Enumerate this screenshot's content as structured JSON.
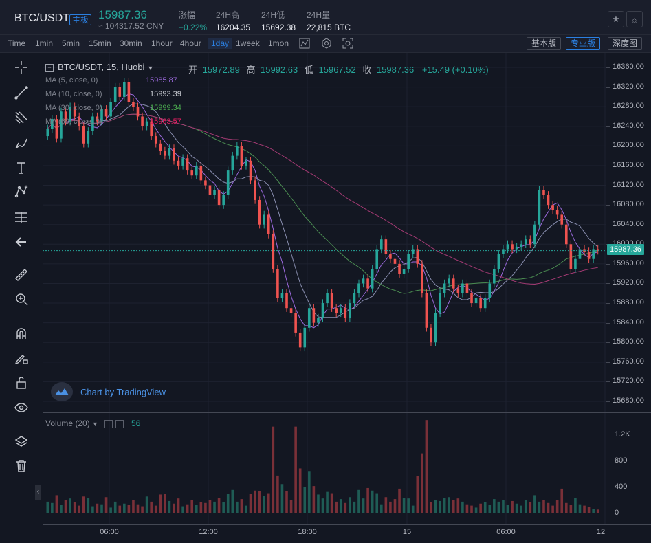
{
  "header": {
    "pair": "BTC/USDT",
    "badge": "主板",
    "price": "15987.36",
    "cny": "≈ 104317.52 CNY",
    "stats": [
      {
        "label": "涨幅",
        "value": "+0.22%"
      },
      {
        "label": "24H高",
        "value": "16204.35"
      },
      {
        "label": "24H低",
        "value": "15692.38"
      },
      {
        "label": "24H量",
        "value": "22,815 BTC"
      }
    ],
    "star_icon": "star-icon",
    "theme_icon": "sun-icon"
  },
  "toolbar": {
    "timeframes": [
      "Time",
      "1min",
      "5min",
      "15min",
      "30min",
      "1hour",
      "4hour",
      "1day",
      "1week",
      "1mon"
    ],
    "active": "1day",
    "icons": [
      "indicator-icon",
      "settings-icon",
      "screenshot-icon"
    ],
    "views": [
      "基本版",
      "专业版",
      "深度图"
    ],
    "active_view": "专业版"
  },
  "legend": {
    "title": "BTC/USDT, 15, Huobi",
    "ohlc": {
      "o_label": "开=",
      "o": "15972.89",
      "h_label": "高=",
      "h": "15992.63",
      "l_label": "低=",
      "l": "15967.52",
      "c_label": "收=",
      "c": "15987.36",
      "change": "+15.49 (+0.10%)"
    },
    "ma": [
      {
        "label": "MA (5, close, 0)",
        "value": "15985.87",
        "color": "#9c6ade"
      },
      {
        "label": "MA (10, close, 0)",
        "value": "15993.39",
        "color": "#c7cad1"
      },
      {
        "label": "MA (30, close, 0)",
        "value": "15999.34",
        "color": "#4caf50"
      },
      {
        "label": "MA (60, close, 0)",
        "value": "15963.57",
        "color": "#e91e63"
      }
    ]
  },
  "watermark": "Chart by TradingView",
  "volume": {
    "label": "Volume (20)",
    "value": "56"
  },
  "last_price_tag": "15987.36",
  "colors": {
    "up": "#26a69a",
    "down": "#ef5350",
    "bg": "#131722"
  },
  "chart_data": {
    "type": "candlestick",
    "y_ticks": [
      16360,
      16320,
      16280,
      16240,
      16200,
      16160,
      16120,
      16080,
      16040,
      16000,
      15960,
      15920,
      15880,
      15840,
      15800,
      15760,
      15720,
      15680
    ],
    "y_tick_labels": [
      "16360.00",
      "16320.00",
      "16280.00",
      "16240.00",
      "16200.00",
      "16160.00",
      "16120.00",
      "16080.00",
      "16040.00",
      "16000.00",
      "15960.00",
      "15920.00",
      "15880.00",
      "15840.00",
      "15800.00",
      "15760.00",
      "15720.00",
      "15680.00"
    ],
    "vol_ticks": [
      "1.2K",
      "800",
      "400",
      "0"
    ],
    "x_labels": [
      "06:00",
      "12:00",
      "18:00",
      "15",
      "06:00",
      "12"
    ],
    "closes": [
      16235,
      16255,
      16215,
      16270,
      16250,
      16280,
      16260,
      16240,
      16205,
      16230,
      16260,
      16250,
      16275,
      16260,
      16290,
      16320,
      16300,
      16330,
      16290,
      16280,
      16260,
      16240,
      16250,
      16220,
      16205,
      16190,
      16180,
      16195,
      16170,
      16160,
      16175,
      16150,
      16140,
      16160,
      16130,
      16120,
      16100,
      16110,
      16080,
      16100,
      16150,
      16180,
      16200,
      16160,
      16170,
      16130,
      16090,
      16040,
      16060,
      16020,
      15950,
      15890,
      15900,
      15870,
      15860,
      15820,
      15790,
      15830,
      15870,
      15840,
      15850,
      15880,
      15900,
      15870,
      15860,
      15870,
      15850,
      15880,
      15900,
      15920,
      15930,
      15910,
      15950,
      15990,
      16010,
      15980,
      15970,
      15960,
      15940,
      15950,
      15980,
      15990,
      15960,
      15900,
      15830,
      15800,
      15860,
      15900,
      15920,
      15930,
      15910,
      15900,
      15920,
      15900,
      15880,
      15890,
      15870,
      15890,
      15920,
      15950,
      15980,
      15990,
      16000,
      15990,
      15995,
      16000,
      16010,
      16000,
      16040,
      16110,
      16100,
      16080,
      16070,
      16060,
      16040,
      16000,
      15950,
      15970,
      15990,
      15985,
      15970,
      15990,
      15987
    ],
    "volumes": [
      180,
      160,
      280,
      130,
      200,
      230,
      170,
      120,
      260,
      240,
      110,
      150,
      140,
      250,
      90,
      180,
      120,
      150,
      130,
      210,
      140,
      110,
      260,
      180,
      120,
      290,
      300,
      190,
      150,
      230,
      110,
      140,
      200,
      130,
      170,
      160,
      210,
      180,
      240,
      170,
      300,
      360,
      180,
      220,
      120,
      300,
      350,
      340,
      270,
      310,
      1330,
      580,
      450,
      340,
      210,
      1330,
      690,
      400,
      650,
      420,
      290,
      230,
      330,
      310,
      180,
      220,
      160,
      250,
      180,
      360,
      230,
      390,
      350,
      310,
      140,
      250,
      180,
      220,
      380,
      240,
      230,
      120,
      570,
      920,
      1430,
      170,
      210,
      190,
      240,
      250,
      200,
      230,
      180,
      140,
      120,
      90,
      150,
      170,
      130,
      220,
      180,
      210,
      130,
      190,
      150,
      120,
      200,
      170,
      280,
      180,
      210,
      160,
      120,
      200,
      380,
      160,
      130,
      240,
      140,
      120,
      100,
      70,
      60
    ]
  }
}
